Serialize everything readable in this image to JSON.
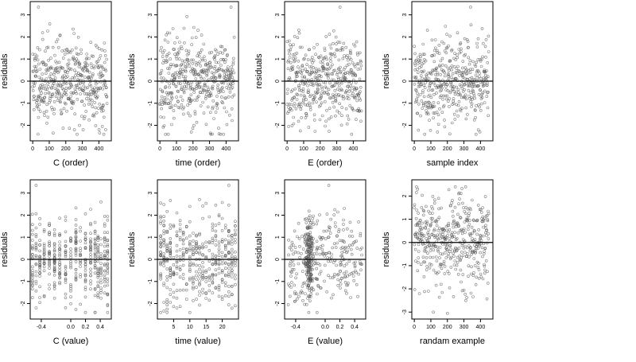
{
  "chart_data": [
    {
      "type": "scatter",
      "xlabel": "C (order)",
      "ylabel": "residuals",
      "xlim": [
        -15,
        475
      ],
      "ylim": [
        -2.7,
        3.6
      ],
      "xticks": [
        0,
        100,
        200,
        300,
        400
      ],
      "xtick_labels": [
        "0",
        "100",
        "200",
        "300",
        "400"
      ],
      "yticks": [
        -2,
        -1,
        0,
        1,
        2,
        3
      ],
      "ytick_labels": [
        "-2",
        "-1",
        "0",
        "1",
        "2",
        "3"
      ],
      "hline": 0,
      "x_kind": "index",
      "n": 450,
      "seed": 11,
      "highlights": [
        {
          "x": 35,
          "y": 3.35
        },
        {
          "x": 305,
          "y": -2.2
        },
        {
          "x": 420,
          "y": -2.05
        }
      ]
    },
    {
      "type": "scatter",
      "xlabel": "time (order)",
      "ylabel": "residuals",
      "xlim": [
        -15,
        475
      ],
      "ylim": [
        -2.7,
        3.6
      ],
      "xticks": [
        0,
        100,
        200,
        300,
        400
      ],
      "xtick_labels": [
        "0",
        "100",
        "200",
        "300",
        "400"
      ],
      "yticks": [
        -2,
        -1,
        0,
        1,
        2,
        3
      ],
      "ytick_labels": [
        "-2",
        "-1",
        "0",
        "1",
        "2",
        "3"
      ],
      "hline": 0,
      "x_kind": "index",
      "n": 450,
      "seed": 23,
      "highlights": [
        {
          "x": 430,
          "y": 3.35
        },
        {
          "x": 190,
          "y": -2.3
        }
      ]
    },
    {
      "type": "scatter",
      "xlabel": "E (order)",
      "ylabel": "residuals",
      "xlim": [
        -15,
        475
      ],
      "ylim": [
        -2.7,
        3.6
      ],
      "xticks": [
        0,
        100,
        200,
        300,
        400
      ],
      "xtick_labels": [
        "0",
        "100",
        "200",
        "300",
        "400"
      ],
      "yticks": [
        -2,
        -1,
        0,
        1,
        2,
        3
      ],
      "ytick_labels": [
        "-2",
        "-1",
        "0",
        "1",
        "2",
        "3"
      ],
      "hline": 0,
      "x_kind": "index",
      "n": 450,
      "seed": 37,
      "highlights": [
        {
          "x": 320,
          "y": 3.35
        },
        {
          "x": 10,
          "y": -2.05
        }
      ]
    },
    {
      "type": "scatter",
      "xlabel": "sample index",
      "ylabel": "residuals",
      "xlim": [
        -15,
        475
      ],
      "ylim": [
        -2.7,
        3.6
      ],
      "xticks": [
        0,
        100,
        200,
        300,
        400
      ],
      "xtick_labels": [
        "0",
        "100",
        "200",
        "300",
        "400"
      ],
      "yticks": [
        -2,
        -1,
        0,
        1,
        2,
        3
      ],
      "ytick_labels": [
        "-2",
        "-1",
        "0",
        "1",
        "2",
        "3"
      ],
      "hline": 0,
      "x_kind": "index",
      "n": 450,
      "seed": 41,
      "highlights": [
        {
          "x": 340,
          "y": 3.35
        },
        {
          "x": 140,
          "y": -2.3
        }
      ]
    },
    {
      "type": "scatter",
      "xlabel": "C (value)",
      "ylabel": "residuals",
      "xlim": [
        -0.55,
        0.55
      ],
      "ylim": [
        -2.7,
        3.6
      ],
      "xticks": [
        -0.4,
        0.0,
        0.2,
        0.4
      ],
      "xtick_labels": [
        "-0.4",
        "0.0",
        "0.2",
        "0.4"
      ],
      "yticks": [
        -2,
        -1,
        0,
        1,
        2,
        3
      ],
      "ytick_labels": [
        "-2",
        "-1",
        "0",
        "1",
        "2",
        "3"
      ],
      "hline": 0,
      "x_kind": "discrete",
      "x_levels": [
        -0.52,
        -0.47,
        -0.42,
        -0.36,
        -0.29,
        -0.22,
        -0.15,
        -0.07,
        0.0,
        0.07,
        0.13,
        0.2,
        0.27,
        0.33,
        0.37,
        0.41,
        0.46,
        0.5
      ],
      "n": 450,
      "seed": 53,
      "highlights": [
        {
          "x": -0.47,
          "y": 3.35
        },
        {
          "x": 0.5,
          "y": -2.05
        }
      ]
    },
    {
      "type": "scatter",
      "xlabel": "time (value)",
      "ylabel": "residuals",
      "xlim": [
        0,
        25
      ],
      "ylim": [
        -2.7,
        3.6
      ],
      "xticks": [
        5,
        10,
        15,
        20
      ],
      "xtick_labels": [
        "5",
        "10",
        "15",
        "20"
      ],
      "yticks": [
        -2,
        -1,
        0,
        1,
        2,
        3
      ],
      "ytick_labels": [
        "-2",
        "-1",
        "0",
        "1",
        "2",
        "3"
      ],
      "hline": 0,
      "x_kind": "discrete",
      "x_levels": [
        1,
        2,
        3,
        4,
        5,
        6,
        7,
        8,
        9,
        10,
        11,
        12,
        13,
        14,
        15,
        16,
        17,
        18,
        19,
        20,
        21,
        22,
        23,
        24
      ],
      "n": 450,
      "seed": 67,
      "highlights": [
        {
          "x": 22,
          "y": 3.35
        },
        {
          "x": 24,
          "y": -2.1
        }
      ]
    },
    {
      "type": "scatter",
      "xlabel": "E (value)",
      "ylabel": "residuals",
      "xlim": [
        -0.55,
        0.55
      ],
      "ylim": [
        -2.7,
        3.6
      ],
      "xticks": [
        -0.4,
        0.0,
        0.2,
        0.4
      ],
      "xtick_labels": [
        "-0.4",
        "0.0",
        "0.2",
        "0.4"
      ],
      "yticks": [
        -2,
        -1,
        0,
        1,
        2,
        3
      ],
      "ytick_labels": [
        "-2",
        "-1",
        "0",
        "1",
        "2",
        "3"
      ],
      "hline": 0,
      "x_kind": "clustered",
      "x_cluster": -0.22,
      "n": 450,
      "seed": 79,
      "highlights": [
        {
          "x": 0.05,
          "y": 3.35
        },
        {
          "x": -0.5,
          "y": -2.05
        }
      ]
    },
    {
      "type": "scatter",
      "xlabel": "randam example",
      "ylabel": "residuals",
      "xlim": [
        -15,
        475
      ],
      "ylim": [
        -3.3,
        2.7
      ],
      "xticks": [
        0,
        100,
        200,
        300,
        400
      ],
      "xtick_labels": [
        "0",
        "100",
        "200",
        "300",
        "400"
      ],
      "yticks": [
        -3,
        -2,
        -1,
        0,
        1,
        2
      ],
      "ytick_labels": [
        "-3",
        "-2",
        "-1",
        "0",
        "1",
        "2"
      ],
      "hline": 0,
      "x_kind": "index",
      "n": 450,
      "seed": 97,
      "sd": 1.05,
      "highlights": [
        {
          "x": 200,
          "y": -3.05
        },
        {
          "x": 20,
          "y": 2.3
        }
      ]
    }
  ]
}
